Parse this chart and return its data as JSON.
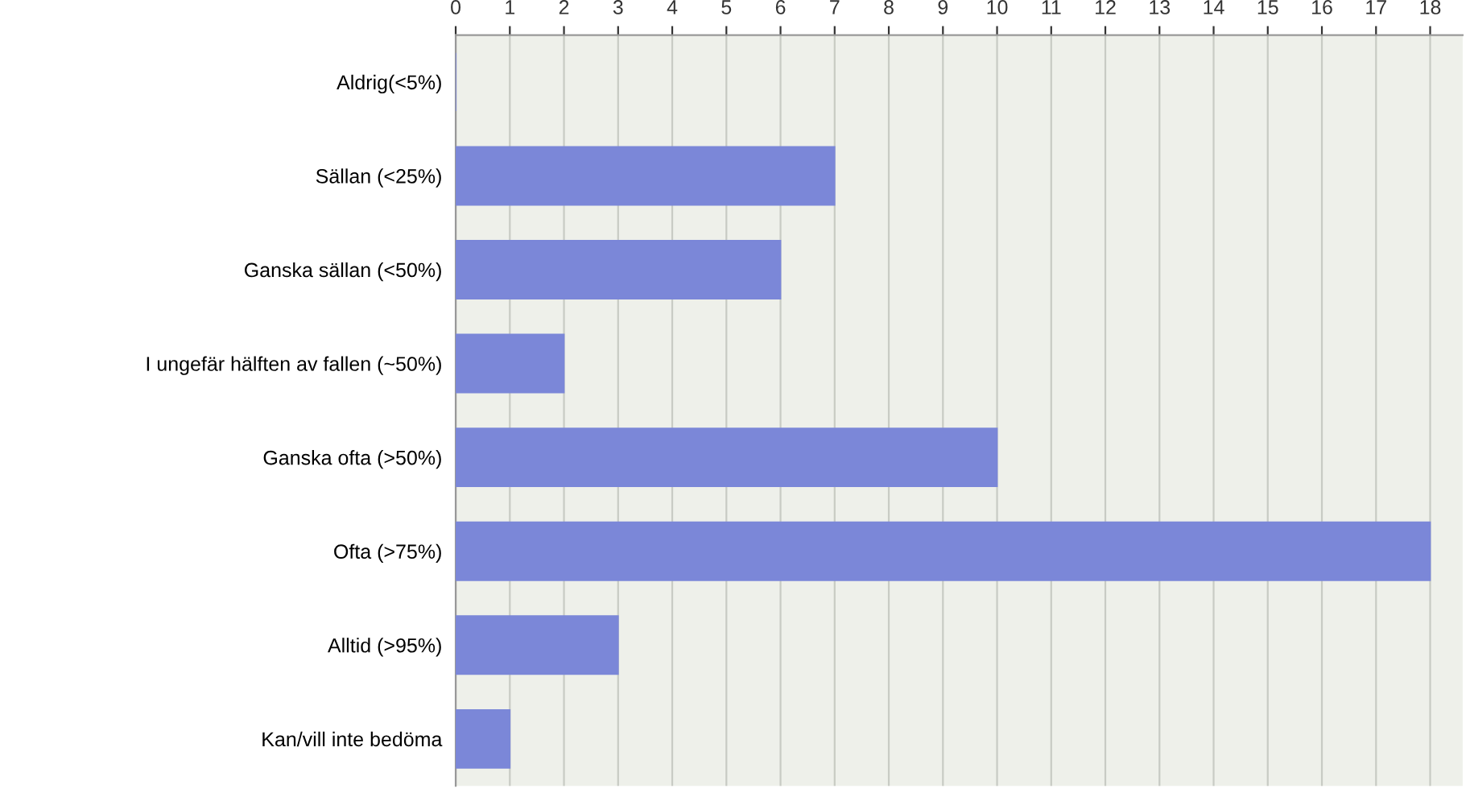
{
  "chart_data": {
    "type": "bar",
    "orientation": "horizontal",
    "categories": [
      "Aldrig(<5%)",
      "Sällan (<25%)",
      "Ganska sällan (<50%)",
      "I ungefär hälften av fallen (~50%)",
      "Ganska ofta (>50%)",
      "Ofta (>75%)",
      "Alltid (>95%)",
      "Kan/vill inte bedöma"
    ],
    "values": [
      0,
      7,
      6,
      2,
      10,
      18,
      3,
      1
    ],
    "color": "#7b87d8",
    "xlim": [
      0,
      18.6
    ],
    "xticks": [
      0,
      1,
      2,
      3,
      4,
      5,
      6,
      7,
      8,
      9,
      10,
      11,
      12,
      13,
      14,
      15,
      16,
      17,
      18
    ],
    "grid": "x",
    "legend": false
  }
}
